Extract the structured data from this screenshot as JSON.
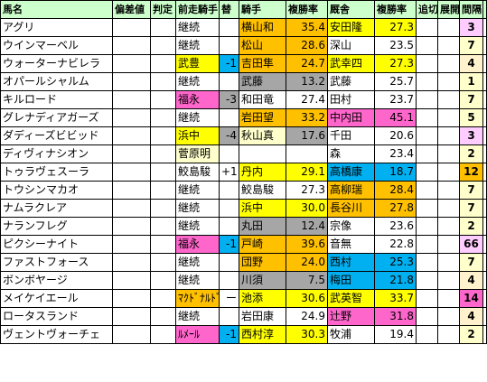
{
  "headers": [
    "馬名",
    "偏差値",
    "判定",
    "前走騎手",
    "替",
    "騎手",
    "複勝率",
    "厩舎",
    "複勝率",
    "追切",
    "展開",
    "間隔",
    "↑"
  ],
  "colors": {
    "header": "#ccffcc",
    "yellow": "#ffff00",
    "orange": "#ffc000",
    "pink": "#ff66cc",
    "gray": "#a6a6a6",
    "teal": "#00b0f0",
    "peach": "#fff2cc",
    "lavender": "#ffccff",
    "lightyellow": "#ffffcc"
  },
  "rows": [
    {
      "name": "アグリ",
      "prev": "継続",
      "change": "",
      "jockey": "横山和",
      "jrate": "35.4",
      "trainer": "安田隆",
      "trate": "27.3",
      "interval": "3",
      "c": {
        "jockey": "orange",
        "jrate": "orange",
        "trainer": "yellow",
        "trate": "yellow",
        "interval": "lavender"
      }
    },
    {
      "name": "ウインマーベル",
      "prev": "継続",
      "change": "",
      "jockey": "松山",
      "jrate": "28.6",
      "trainer": "深山",
      "trate": "23.5",
      "interval": "7",
      "c": {
        "jockey": "orange",
        "jrate": "orange",
        "interval": "lightyellow"
      }
    },
    {
      "name": "ウォーターナビレラ",
      "prev": "武豊",
      "change": "-1",
      "jockey": "吉田隼",
      "jrate": "24.7",
      "trainer": "武幸四",
      "trate": "27.3",
      "interval": "4",
      "c": {
        "prev": "yellow",
        "change": "teal",
        "jockey": "orange",
        "jrate": "orange",
        "trainer": "yellow",
        "trate": "yellow",
        "interval": "peach"
      }
    },
    {
      "name": "オパールシャルム",
      "prev": "継続",
      "change": "",
      "jockey": "武藤",
      "jrate": "13.2",
      "trainer": "武藤",
      "trate": "25.7",
      "interval": "1",
      "c": {
        "jockey": "gray",
        "jrate": "gray",
        "interval": "lightyellow"
      }
    },
    {
      "name": "キルロード",
      "prev": "福永",
      "change": "-3",
      "jockey": "和田竜",
      "jrate": "27.4",
      "trainer": "田村",
      "trate": "23.7",
      "interval": "7",
      "c": {
        "prev": "pink",
        "change": "gray",
        "interval": "lightyellow"
      }
    },
    {
      "name": "グレナディアガーズ",
      "prev": "継続",
      "change": "",
      "jockey": "岩田望",
      "jrate": "33.2",
      "trainer": "中内田",
      "trate": "45.1",
      "interval": "5",
      "c": {
        "jockey": "orange",
        "jrate": "orange",
        "trainer": "pink",
        "trate": "pink",
        "interval": "lightyellow"
      }
    },
    {
      "name": "ダディーズビビッド",
      "prev": "浜中",
      "change": "-4",
      "jockey": "秋山真",
      "jrate": "17.6",
      "trainer": "千田",
      "trate": "20.6",
      "interval": "3",
      "c": {
        "prev": "yellow",
        "change": "gray",
        "jockey": "lightyellow",
        "jrate": "gray",
        "interval": "lavender"
      }
    },
    {
      "name": "ディヴィナシオン",
      "prev": "菅原明",
      "change": "",
      "jockey": "",
      "jrate": "",
      "trainer": "森",
      "trate": "23.4",
      "interval": "2",
      "c": {
        "prev": "lightyellow",
        "interval": "lightyellow"
      }
    },
    {
      "name": "トゥラヴェスーラ",
      "prev": "鮫島駿",
      "change": "+1",
      "jockey": "丹内",
      "jrate": "29.1",
      "trainer": "高橋康",
      "trate": "18.7",
      "interval": "12",
      "c": {
        "jockey": "yellow",
        "jrate": "yellow",
        "trainer": "teal",
        "trate": "teal",
        "interval": "orange"
      }
    },
    {
      "name": "トウシンマカオ",
      "prev": "継続",
      "change": "",
      "jockey": "鮫島駿",
      "jrate": "27.3",
      "trainer": "高柳瑞",
      "trate": "28.4",
      "interval": "7",
      "c": {
        "trainer": "orange",
        "trate": "orange",
        "interval": "lightyellow"
      }
    },
    {
      "name": "ナムラクレア",
      "prev": "継続",
      "change": "",
      "jockey": "浜中",
      "jrate": "30.0",
      "trainer": "長谷川",
      "trate": "27.8",
      "interval": "7",
      "c": {
        "jockey": "yellow",
        "jrate": "yellow",
        "trainer": "orange",
        "trate": "orange",
        "interval": "lightyellow"
      }
    },
    {
      "name": "ナランフレグ",
      "prev": "継続",
      "change": "",
      "jockey": "丸田",
      "jrate": "12.4",
      "trainer": "宗像",
      "trate": "23.6",
      "interval": "2",
      "c": {
        "jockey": "gray",
        "jrate": "gray",
        "interval": "lightyellow"
      }
    },
    {
      "name": "ピクシーナイト",
      "prev": "福永",
      "change": "-1",
      "jockey": "戸崎",
      "jrate": "39.6",
      "trainer": "音無",
      "trate": "22.8",
      "interval": "66",
      "c": {
        "prev": "pink",
        "change": "teal",
        "jockey": "orange",
        "jrate": "orange",
        "interval": "lavender"
      }
    },
    {
      "name": "ファストフォース",
      "prev": "継続",
      "change": "",
      "jockey": "団野",
      "jrate": "24.0",
      "trainer": "西村",
      "trate": "25.3",
      "interval": "7",
      "c": {
        "jockey": "orange",
        "jrate": "orange",
        "trainer": "teal",
        "trate": "teal",
        "interval": "lightyellow"
      }
    },
    {
      "name": "ボンボヤージ",
      "prev": "継続",
      "change": "",
      "jockey": "川須",
      "jrate": "7.5",
      "trainer": "梅田",
      "trate": "21.8",
      "interval": "4",
      "c": {
        "jockey": "gray",
        "jrate": "gray",
        "trainer": "teal",
        "trate": "teal",
        "interval": "peach"
      }
    },
    {
      "name": "メイケイエール",
      "prev": "ﾏｸﾄﾞﾅﾙﾄﾞ",
      "change": "ー",
      "jockey": "池添",
      "jrate": "30.6",
      "trainer": "武英智",
      "trate": "33.7",
      "interval": "14",
      "c": {
        "prev": "orange",
        "jockey": "yellow",
        "jrate": "yellow",
        "trainer": "yellow",
        "trate": "yellow",
        "interval": "pink"
      }
    },
    {
      "name": "ロータスランド",
      "prev": "継続",
      "change": "",
      "jockey": "岩田康",
      "jrate": "24.9",
      "trainer": "辻野",
      "trate": "31.8",
      "interval": "4",
      "c": {
        "trainer": "pink",
        "trate": "pink",
        "interval": "peach"
      }
    },
    {
      "name": "ヴェントヴォーチェ",
      "prev": "ﾙﾒｰﾙ",
      "change": "-1",
      "jockey": "西村淳",
      "jrate": "30.3",
      "trainer": "牧浦",
      "trate": "19.4",
      "interval": "2",
      "c": {
        "prev": "pink",
        "change": "teal",
        "jockey": "yellow",
        "jrate": "yellow",
        "interval": "lightyellow"
      }
    }
  ]
}
